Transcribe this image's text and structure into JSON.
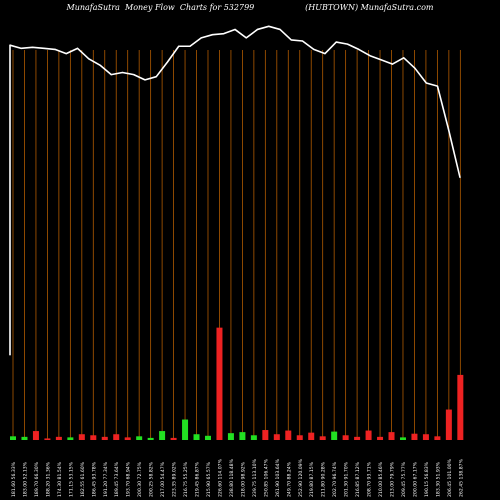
{
  "header": {
    "title": "MunafaSutra  Money Flow  Charts for 532799                    (HUBTOWN) MunafaSutra.com"
  },
  "chart_data": {
    "type": "bar",
    "title": "MunafaSutra  Money Flow  Charts for 532799                    (HUBTOWN) MunafaSutra.com",
    "colors": {
      "background": "#000000",
      "grid": "#b05a00",
      "up": "#22e022",
      "down": "#ee2222",
      "line": "#ffffff"
    },
    "categories": [
      "181.60 56.33%",
      "183.00 52.13%",
      "189.70 66.30%",
      "188.20 31.36%",
      "174.30 81.54%",
      "171.15 53.15%",
      "182.55 61.60%",
      "186.45 93.78%",
      "191.20 77.34%",
      "189.45 73.64%",
      "193.70 68.94%",
      "200.30 72.75%",
      "200.25 58.82%",
      "217.00 54.47%",
      "223.35 89.02%",
      "216.75 55.25%",
      "219.45 86.87%",
      "215.90 65.57%",
      "226.60 114.07%",
      "238.80 118.48%",
      "218.00 98.92%",
      "239.75 113.10%",
      "250.85 106.47%",
      "261.90 103.64%",
      "249.70 88.24%",
      "252.90 120.09%",
      "219.80 87.15%",
      "211.80 90.28%",
      "202.70 96.74%",
      "201.30 91.70%",
      "216.85 87.12%",
      "208.70 93.71%",
      "210.00 85.46%",
      "213.00 79.79%",
      "209.45 75.77%",
      "200.00 67.17%",
      "190.15 56.83%",
      "183.30 51.93%",
      "206.45 101.00%",
      "262.45 138.87%"
    ],
    "bars": [
      {
        "value": 3.5,
        "direction": "up"
      },
      {
        "value": 3.0,
        "direction": "up"
      },
      {
        "value": 8.5,
        "direction": "down"
      },
      {
        "value": 1.5,
        "direction": "down"
      },
      {
        "value": 3.0,
        "direction": "down"
      },
      {
        "value": 2.5,
        "direction": "up"
      },
      {
        "value": 5.5,
        "direction": "down"
      },
      {
        "value": 4.5,
        "direction": "down"
      },
      {
        "value": 3.0,
        "direction": "down"
      },
      {
        "value": 5.5,
        "direction": "down"
      },
      {
        "value": 2.5,
        "direction": "down"
      },
      {
        "value": 3.5,
        "direction": "up"
      },
      {
        "value": 2.0,
        "direction": "up"
      },
      {
        "value": 8.5,
        "direction": "up"
      },
      {
        "value": 2.0,
        "direction": "down"
      },
      {
        "value": 19.5,
        "direction": "up"
      },
      {
        "value": 5.5,
        "direction": "up"
      },
      {
        "value": 4.0,
        "direction": "up"
      },
      {
        "value": 107.0,
        "direction": "down"
      },
      {
        "value": 6.5,
        "direction": "up"
      },
      {
        "value": 7.5,
        "direction": "up"
      },
      {
        "value": 4.5,
        "direction": "up"
      },
      {
        "value": 9.5,
        "direction": "down"
      },
      {
        "value": 5.5,
        "direction": "down"
      },
      {
        "value": 9.0,
        "direction": "down"
      },
      {
        "value": 4.5,
        "direction": "down"
      },
      {
        "value": 7.0,
        "direction": "down"
      },
      {
        "value": 3.5,
        "direction": "down"
      },
      {
        "value": 8.0,
        "direction": "up"
      },
      {
        "value": 4.5,
        "direction": "down"
      },
      {
        "value": 3.0,
        "direction": "down"
      },
      {
        "value": 9.0,
        "direction": "down"
      },
      {
        "value": 3.0,
        "direction": "down"
      },
      {
        "value": 7.5,
        "direction": "down"
      },
      {
        "value": 2.5,
        "direction": "up"
      },
      {
        "value": 6.0,
        "direction": "down"
      },
      {
        "value": 5.5,
        "direction": "down"
      },
      {
        "value": 3.5,
        "direction": "down"
      },
      {
        "value": 29.0,
        "direction": "down"
      },
      {
        "value": 62.0,
        "direction": "down"
      }
    ],
    "line": [
      {
        "y": 81
      },
      {
        "y": 376
      },
      {
        "y": 373
      },
      {
        "y": 374
      },
      {
        "y": 373
      },
      {
        "y": 372
      },
      {
        "y": 368
      },
      {
        "y": 373
      },
      {
        "y": 363
      },
      {
        "y": 357
      },
      {
        "y": 348
      },
      {
        "y": 350
      },
      {
        "y": 348
      },
      {
        "y": 343
      },
      {
        "y": 346
      },
      {
        "y": 360
      },
      {
        "y": 375
      },
      {
        "y": 375
      },
      {
        "y": 383
      },
      {
        "y": 386
      },
      {
        "y": 387
      },
      {
        "y": 391
      },
      {
        "y": 383
      },
      {
        "y": 391
      },
      {
        "y": 394
      },
      {
        "y": 391
      },
      {
        "y": 381
      },
      {
        "y": 380
      },
      {
        "y": 372
      },
      {
        "y": 368
      },
      {
        "y": 379
      },
      {
        "y": 377
      },
      {
        "y": 372
      },
      {
        "y": 366
      },
      {
        "y": 362
      },
      {
        "y": 358
      },
      {
        "y": 364
      },
      {
        "y": 354
      },
      {
        "y": 340
      },
      {
        "y": 337
      },
      {
        "y": 295
      },
      {
        "y": 250
      }
    ],
    "ylim": [
      0,
      400
    ],
    "grid": "vertical"
  }
}
